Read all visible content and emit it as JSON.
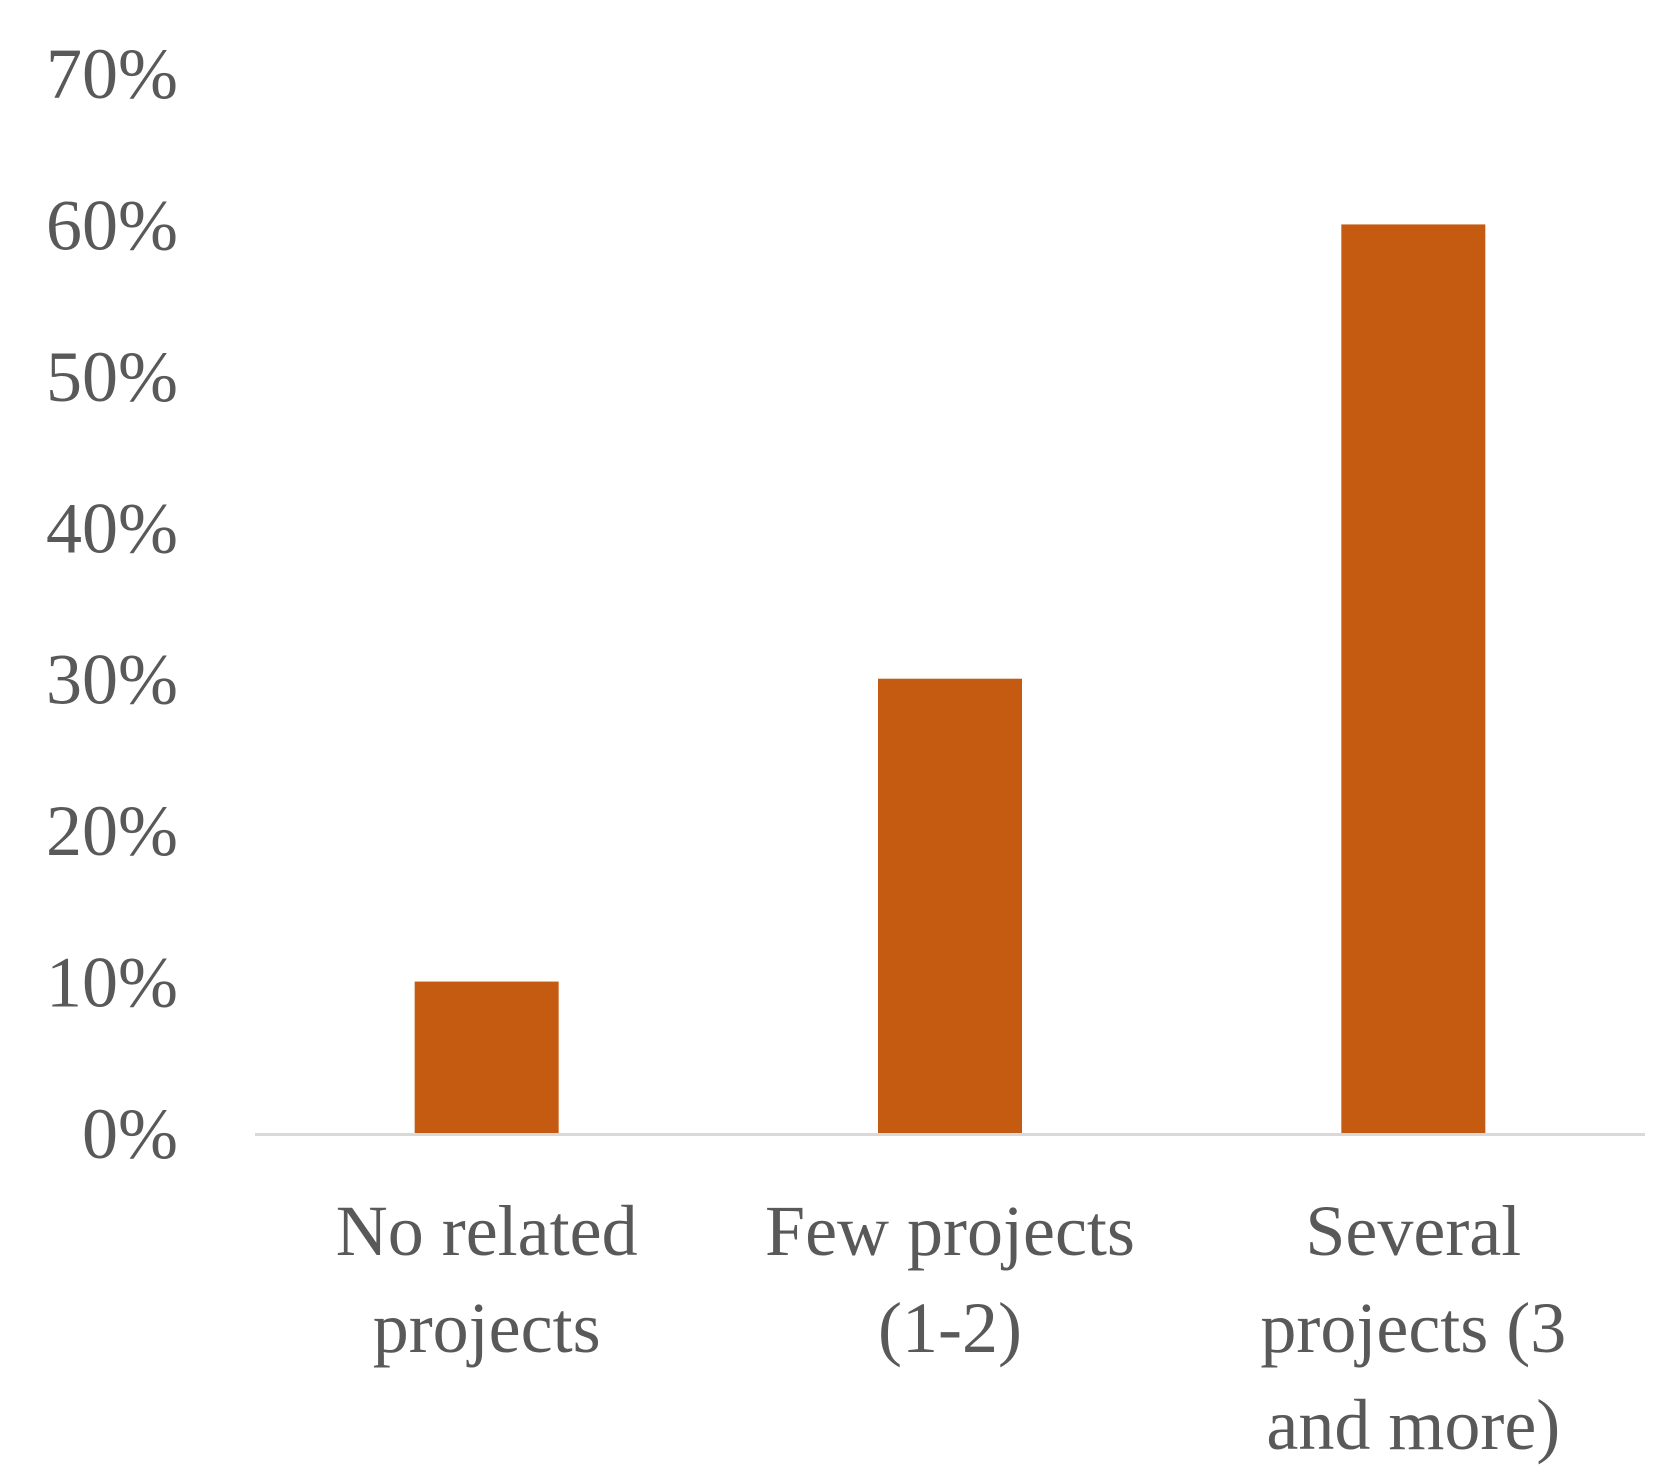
{
  "chart_data": {
    "type": "bar",
    "title": "",
    "xlabel": "",
    "ylabel": "",
    "categories": [
      [
        "No related",
        "projects"
      ],
      [
        "Few projects",
        "(1-2)"
      ],
      [
        "Several",
        "projects (3",
        "and more)"
      ]
    ],
    "values": [
      10,
      30,
      60
    ],
    "ylim": [
      0,
      70
    ],
    "yticks": [
      0,
      10,
      20,
      30,
      40,
      50,
      60,
      70
    ],
    "ytick_labels": [
      "0%",
      "10%",
      "20%",
      "30%",
      "40%",
      "50%",
      "60%",
      "70%"
    ],
    "grid": false,
    "legend": "none",
    "colors": {
      "bar": "#C55A11",
      "axis": "#D9D9D9",
      "text": "#595959"
    }
  }
}
